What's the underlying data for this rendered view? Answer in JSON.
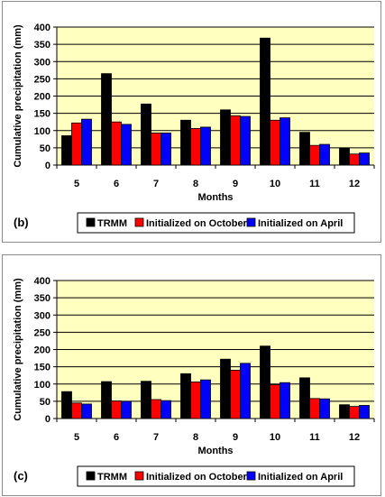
{
  "chart_data": [
    {
      "type": "bar",
      "panel_label": "(b)",
      "categories": [
        "5",
        "6",
        "7",
        "8",
        "9",
        "10",
        "11",
        "12"
      ],
      "series": [
        {
          "name": "TRMM",
          "color": "#000000",
          "values": [
            85,
            265,
            177,
            130,
            160,
            368,
            95,
            50
          ]
        },
        {
          "name": "Initialized on October",
          "color": "#ff0000",
          "values": [
            122,
            125,
            93,
            106,
            143,
            130,
            57,
            32
          ]
        },
        {
          "name": "Initialized on April",
          "color": "#0000ff",
          "values": [
            133,
            118,
            93,
            110,
            141,
            137,
            60,
            35
          ]
        }
      ],
      "xlabel": "Months",
      "ylabel": "Cumulative precipitation (mm)",
      "ylim": [
        0,
        400
      ],
      "yticks": [
        0,
        50,
        100,
        150,
        200,
        250,
        300,
        350,
        400
      ],
      "grid": true,
      "plot_background": "#ffffc0",
      "legend_position": "bottom"
    },
    {
      "type": "bar",
      "panel_label": "(c)",
      "categories": [
        "5",
        "6",
        "7",
        "8",
        "9",
        "10",
        "11",
        "12"
      ],
      "series": [
        {
          "name": "TRMM",
          "color": "#000000",
          "values": [
            78,
            107,
            108,
            130,
            172,
            210,
            118,
            40
          ]
        },
        {
          "name": "Initialized on October",
          "color": "#ff0000",
          "values": [
            45,
            51,
            55,
            106,
            140,
            98,
            58,
            35
          ]
        },
        {
          "name": "Initialized on April",
          "color": "#0000ff",
          "values": [
            42,
            50,
            52,
            112,
            160,
            104,
            57,
            38
          ]
        }
      ],
      "xlabel": "Months",
      "ylabel": "Cumulative precipitation (mm)",
      "ylim": [
        0,
        400
      ],
      "yticks": [
        0,
        50,
        100,
        150,
        200,
        250,
        300,
        350,
        400
      ],
      "grid": true,
      "plot_background": "#ffffc0",
      "legend_position": "bottom"
    }
  ]
}
